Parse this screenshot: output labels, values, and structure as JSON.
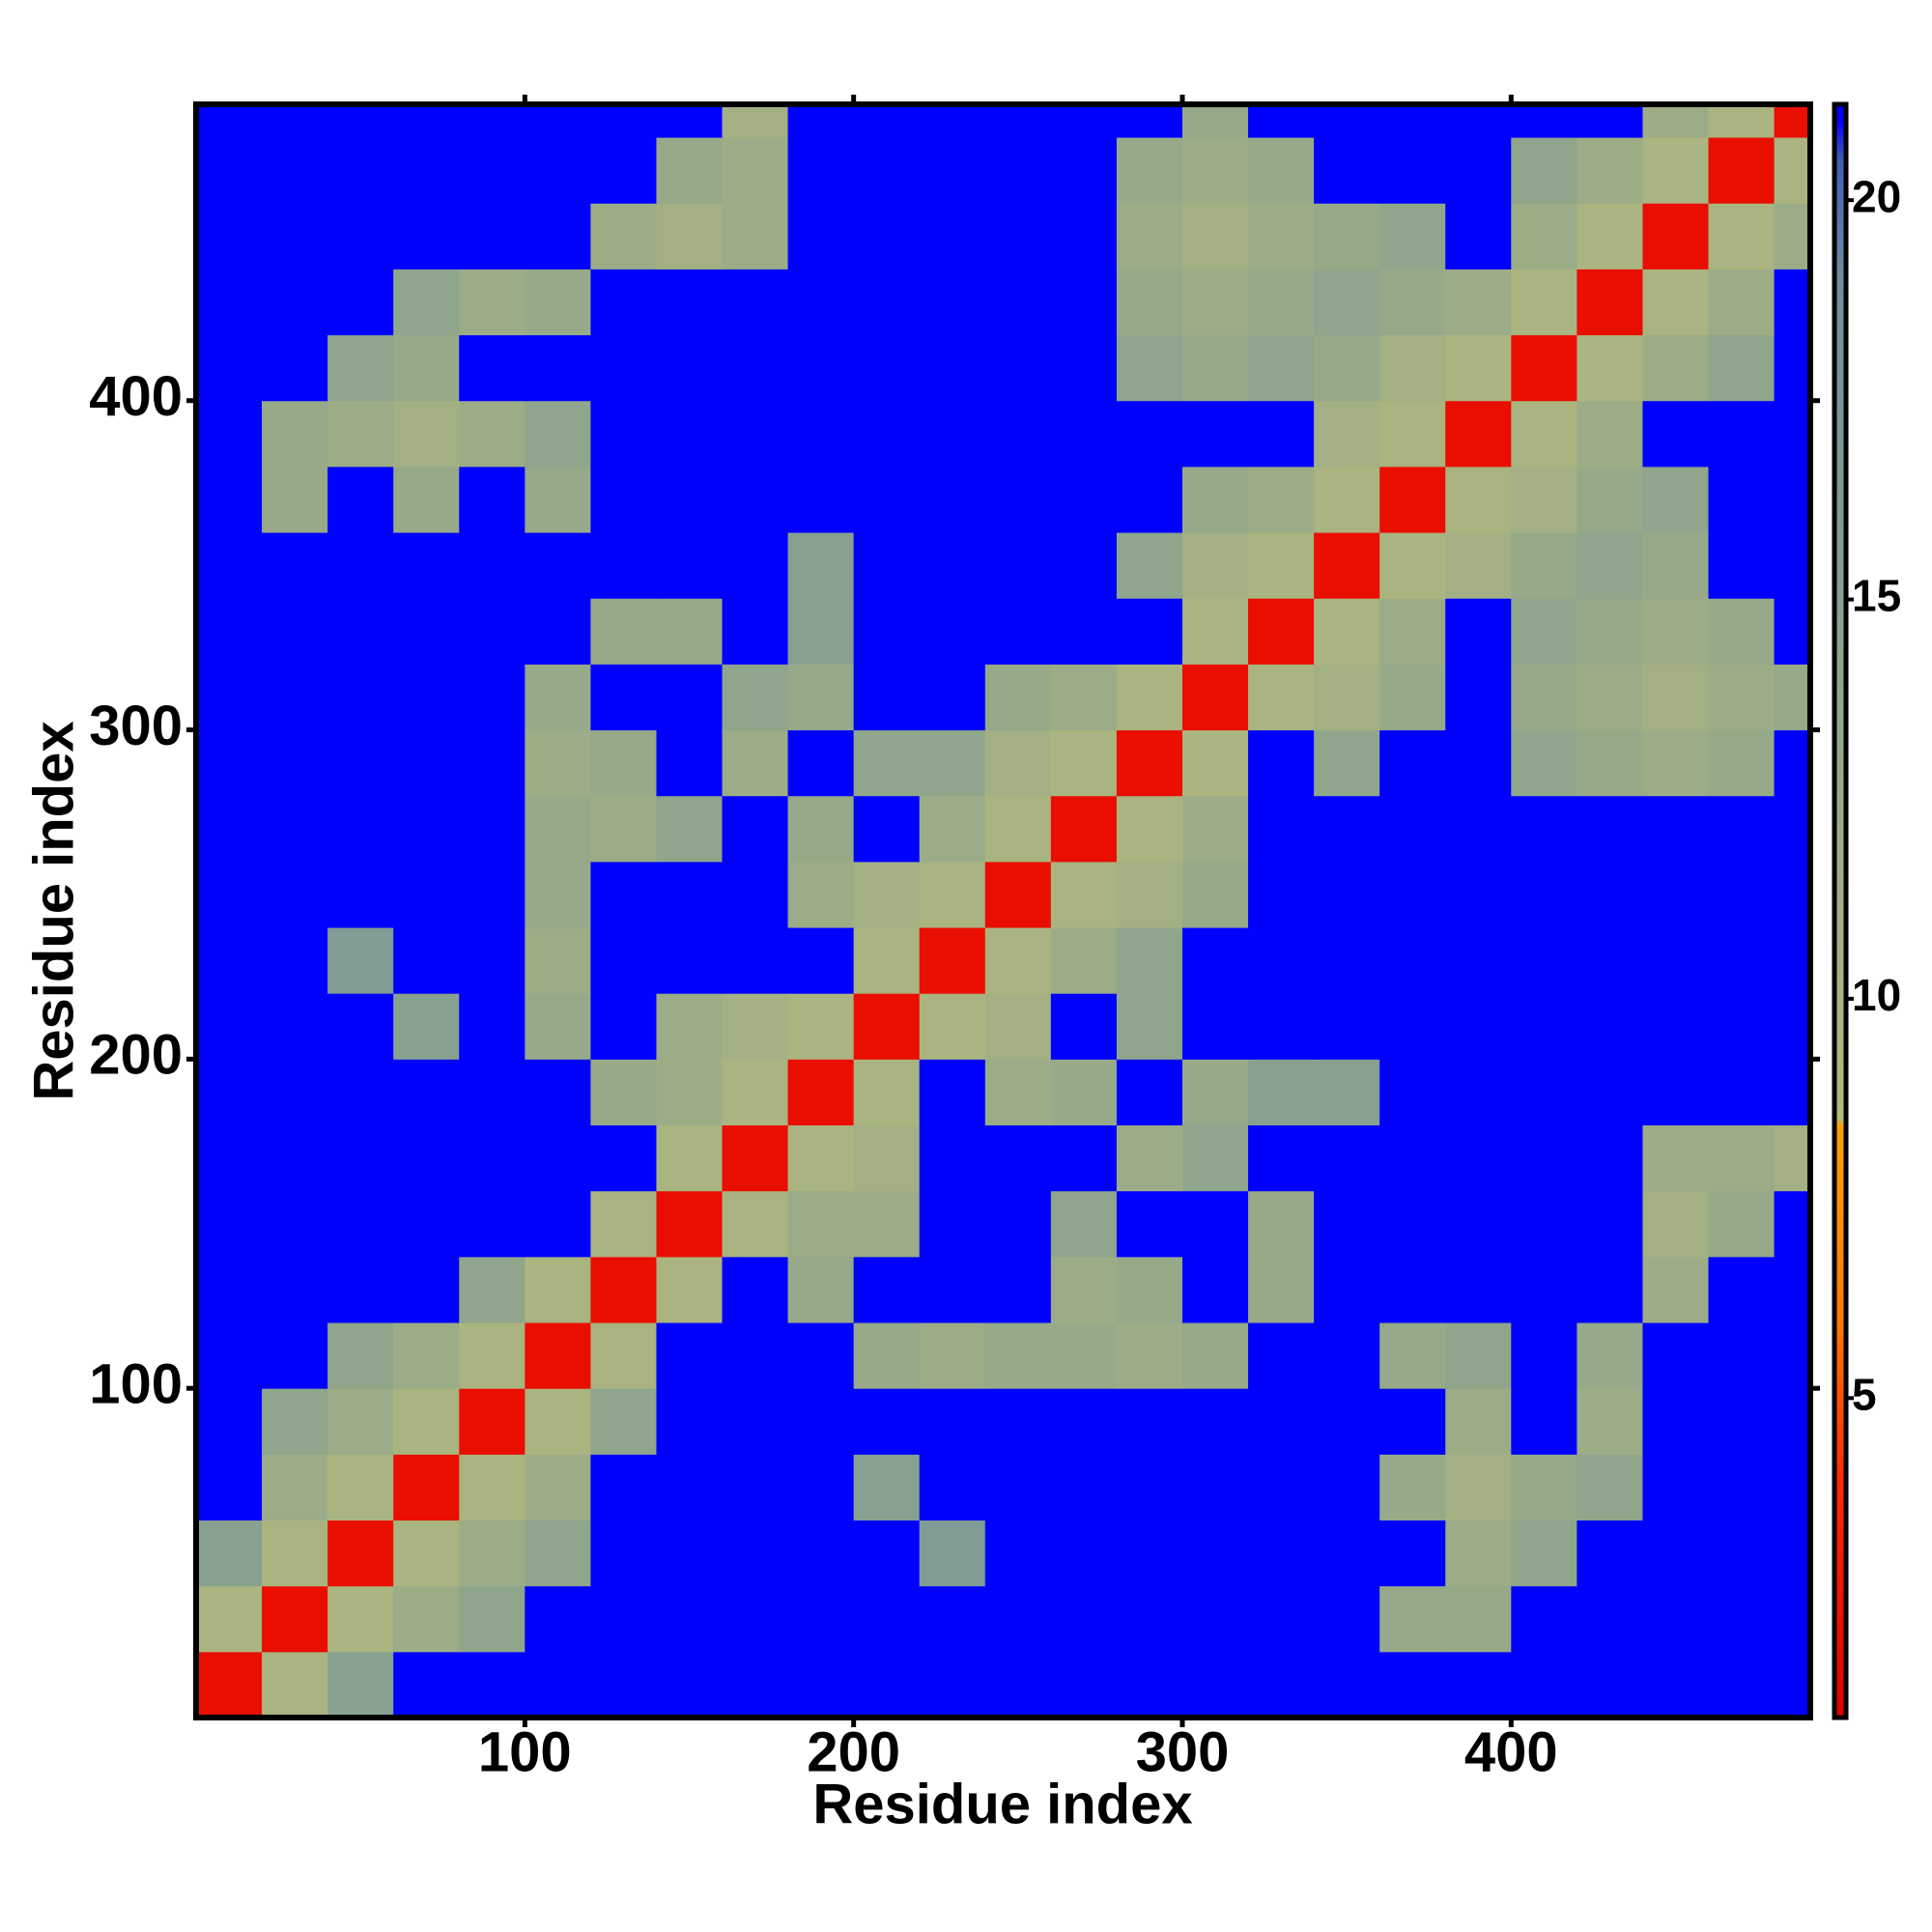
{
  "chart_data": {
    "type": "heatmap",
    "xlabel": "Residue index",
    "ylabel": "Residue index",
    "xlim": [
      0,
      491
    ],
    "ylim": [
      0,
      490
    ],
    "xticks": [
      100,
      200,
      300,
      400
    ],
    "yticks": [
      100,
      200,
      300,
      400
    ],
    "clim": [
      1,
      21.2
    ],
    "cticks": [
      5,
      10,
      15,
      20
    ],
    "colorscale": [
      {
        "value": 1,
        "color": "#e00000"
      },
      {
        "value": 4,
        "color": "#ff2a00"
      },
      {
        "value": 6,
        "color": "#ff7a00"
      },
      {
        "value": 8.4,
        "color": "#ffa000"
      },
      {
        "value": 8.5,
        "color": "#b4b97c"
      },
      {
        "value": 14,
        "color": "#8fa58c"
      },
      {
        "value": 19,
        "color": "#6d8ea0"
      },
      {
        "value": 20.5,
        "color": "#3d5fb4"
      },
      {
        "value": 21,
        "color": "#0000ff"
      },
      {
        "value": 21.2,
        "color": "#0000ff"
      }
    ],
    "x": [
      10,
      30,
      50,
      70,
      90,
      110,
      130,
      150,
      170,
      190,
      210,
      230,
      250,
      270,
      290,
      310,
      330,
      350,
      370,
      390,
      410,
      430,
      450,
      470,
      490
    ],
    "y": [
      10,
      30,
      50,
      70,
      90,
      110,
      130,
      150,
      170,
      190,
      210,
      230,
      250,
      270,
      290,
      310,
      330,
      350,
      370,
      390,
      410,
      430,
      450,
      470,
      490
    ],
    "z": [
      [
        2,
        10,
        15,
        21,
        21,
        21,
        21,
        21,
        21,
        21,
        21,
        21,
        21,
        21,
        21,
        21,
        21,
        21,
        21,
        21,
        21,
        21,
        21,
        21,
        21
      ],
      [
        10,
        2,
        10,
        12,
        14,
        21,
        21,
        21,
        21,
        21,
        21,
        21,
        21,
        21,
        21,
        21,
        21,
        21,
        13,
        13,
        21,
        21,
        21,
        21,
        21
      ],
      [
        15,
        10,
        2,
        10,
        12,
        14,
        21,
        21,
        21,
        21,
        21,
        16,
        21,
        21,
        21,
        21,
        21,
        21,
        21,
        12,
        14,
        21,
        21,
        21,
        21
      ],
      [
        21,
        12,
        10,
        2,
        10,
        12,
        21,
        21,
        21,
        21,
        15,
        21,
        21,
        21,
        21,
        21,
        21,
        21,
        13,
        11,
        13,
        14,
        21,
        21,
        21
      ],
      [
        21,
        14,
        12,
        10,
        2,
        10,
        14,
        21,
        21,
        21,
        21,
        21,
        21,
        21,
        21,
        21,
        21,
        21,
        21,
        12,
        21,
        12,
        21,
        21,
        21
      ],
      [
        21,
        21,
        14,
        12,
        10,
        2,
        10,
        21,
        21,
        21,
        13,
        12,
        13,
        13,
        12,
        13,
        21,
        21,
        13,
        14,
        21,
        13,
        21,
        21,
        21
      ],
      [
        21,
        21,
        21,
        21,
        14,
        10,
        2,
        10,
        21,
        13,
        21,
        21,
        21,
        12,
        13,
        21,
        13,
        21,
        21,
        21,
        21,
        21,
        12,
        21,
        21
      ],
      [
        21,
        21,
        21,
        21,
        21,
        21,
        10,
        2,
        10,
        12,
        12,
        21,
        21,
        14,
        21,
        21,
        13,
        21,
        21,
        21,
        21,
        21,
        11,
        13,
        21
      ],
      [
        21,
        21,
        21,
        21,
        21,
        21,
        21,
        10,
        2,
        10,
        11,
        21,
        21,
        21,
        12,
        14,
        21,
        21,
        21,
        21,
        21,
        21,
        12,
        12,
        11
      ],
      [
        21,
        21,
        21,
        21,
        21,
        21,
        13,
        12,
        10,
        2,
        10,
        21,
        12,
        13,
        21,
        13,
        15,
        15,
        21,
        21,
        21,
        21,
        21,
        21,
        21
      ],
      [
        21,
        21,
        21,
        15,
        21,
        13,
        21,
        12,
        11,
        10,
        2,
        10,
        11,
        21,
        14,
        21,
        21,
        21,
        21,
        21,
        21,
        21,
        21,
        21,
        21
      ],
      [
        21,
        21,
        16,
        21,
        21,
        12,
        21,
        21,
        21,
        21,
        10,
        2,
        10,
        12,
        14,
        21,
        21,
        21,
        21,
        21,
        21,
        21,
        21,
        21,
        21
      ],
      [
        21,
        21,
        21,
        21,
        21,
        13,
        21,
        21,
        21,
        12,
        11,
        10,
        2,
        10,
        11,
        13,
        21,
        21,
        21,
        21,
        21,
        21,
        21,
        21,
        21
      ],
      [
        21,
        21,
        21,
        21,
        21,
        13,
        12,
        14,
        21,
        13,
        21,
        12,
        10,
        2,
        10,
        12,
        21,
        21,
        21,
        21,
        21,
        21,
        21,
        21,
        21
      ],
      [
        21,
        21,
        21,
        21,
        21,
        12,
        13,
        21,
        12,
        21,
        14,
        14,
        11,
        10,
        2,
        10,
        21,
        14,
        21,
        21,
        14,
        13,
        12,
        13,
        21
      ],
      [
        21,
        21,
        21,
        21,
        21,
        13,
        21,
        21,
        14,
        13,
        21,
        21,
        13,
        12,
        10,
        2,
        10,
        11,
        13,
        21,
        13,
        12,
        11,
        12,
        13
      ],
      [
        21,
        21,
        21,
        21,
        21,
        21,
        13,
        13,
        21,
        15,
        21,
        21,
        21,
        21,
        21,
        10,
        2,
        10,
        12,
        21,
        14,
        13,
        12,
        13,
        21
      ],
      [
        21,
        21,
        21,
        21,
        21,
        21,
        21,
        21,
        21,
        15,
        21,
        21,
        21,
        21,
        14,
        11,
        10,
        2,
        10,
        11,
        13,
        14,
        13,
        21,
        21
      ],
      [
        21,
        13,
        21,
        13,
        21,
        13,
        21,
        21,
        21,
        21,
        21,
        21,
        21,
        21,
        21,
        13,
        12,
        10,
        2,
        10,
        11,
        13,
        14,
        21,
        21
      ],
      [
        21,
        13,
        12,
        11,
        12,
        14,
        21,
        21,
        21,
        21,
        21,
        21,
        21,
        21,
        21,
        21,
        21,
        11,
        10,
        2,
        10,
        12,
        21,
        21,
        21
      ],
      [
        21,
        21,
        14,
        13,
        21,
        21,
        21,
        21,
        21,
        21,
        21,
        21,
        21,
        21,
        14,
        13,
        14,
        13,
        11,
        10,
        2,
        10,
        12,
        14,
        21
      ],
      [
        21,
        21,
        21,
        14,
        12,
        13,
        21,
        21,
        21,
        21,
        21,
        21,
        21,
        21,
        13,
        12,
        13,
        14,
        13,
        12,
        10,
        2,
        10,
        12,
        21
      ],
      [
        21,
        21,
        21,
        21,
        21,
        21,
        12,
        11,
        12,
        21,
        21,
        21,
        21,
        21,
        12,
        11,
        12,
        13,
        14,
        21,
        12,
        10,
        2,
        10,
        12
      ],
      [
        21,
        21,
        21,
        21,
        21,
        21,
        21,
        13,
        12,
        21,
        21,
        21,
        21,
        21,
        13,
        12,
        13,
        21,
        21,
        21,
        14,
        12,
        10,
        2,
        10
      ],
      [
        21,
        21,
        21,
        21,
        21,
        21,
        21,
        21,
        11,
        21,
        21,
        21,
        21,
        21,
        21,
        13,
        21,
        21,
        21,
        21,
        21,
        21,
        12,
        10,
        2
      ]
    ]
  }
}
